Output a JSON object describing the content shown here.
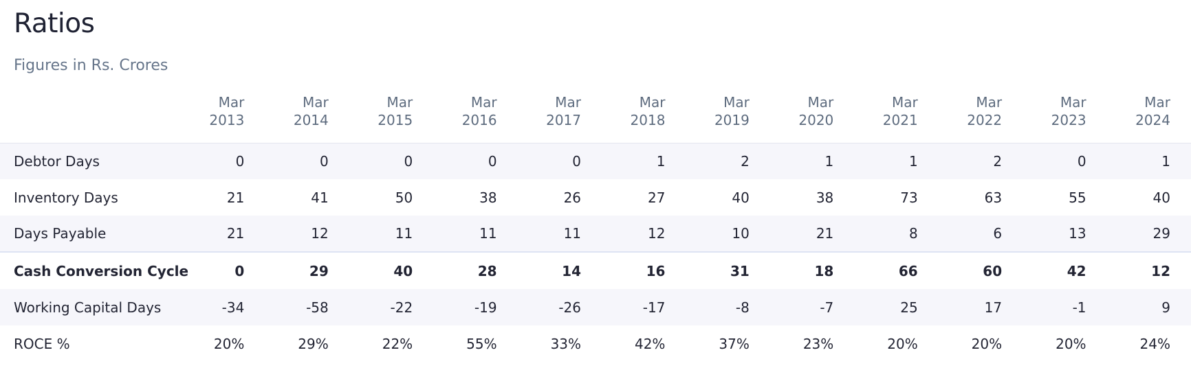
{
  "section": {
    "title": "Ratios",
    "subtitle": "Figures in Rs. Crores"
  },
  "table": {
    "columns": [
      {
        "month": "Mar",
        "year": "2013"
      },
      {
        "month": "Mar",
        "year": "2014"
      },
      {
        "month": "Mar",
        "year": "2015"
      },
      {
        "month": "Mar",
        "year": "2016"
      },
      {
        "month": "Mar",
        "year": "2017"
      },
      {
        "month": "Mar",
        "year": "2018"
      },
      {
        "month": "Mar",
        "year": "2019"
      },
      {
        "month": "Mar",
        "year": "2020"
      },
      {
        "month": "Mar",
        "year": "2021"
      },
      {
        "month": "Mar",
        "year": "2022"
      },
      {
        "month": "Mar",
        "year": "2023"
      },
      {
        "month": "Mar",
        "year": "2024"
      }
    ],
    "rows": [
      {
        "label": "Debtor Days",
        "values": [
          "0",
          "0",
          "0",
          "0",
          "0",
          "1",
          "2",
          "1",
          "1",
          "2",
          "0",
          "1"
        ]
      },
      {
        "label": "Inventory Days",
        "values": [
          "21",
          "41",
          "50",
          "38",
          "26",
          "27",
          "40",
          "38",
          "73",
          "63",
          "55",
          "40"
        ]
      },
      {
        "label": "Days Payable",
        "values": [
          "21",
          "12",
          "11",
          "11",
          "11",
          "12",
          "10",
          "21",
          "8",
          "6",
          "13",
          "29"
        ]
      },
      {
        "label": "Cash Conversion Cycle",
        "values": [
          "0",
          "29",
          "40",
          "28",
          "14",
          "16",
          "31",
          "18",
          "66",
          "60",
          "42",
          "12"
        ]
      },
      {
        "label": "Working Capital Days",
        "values": [
          "-34",
          "-58",
          "-22",
          "-19",
          "-26",
          "-17",
          "-8",
          "-7",
          "25",
          "17",
          "-1",
          "9"
        ]
      },
      {
        "label": "ROCE %",
        "values": [
          "20%",
          "29%",
          "22%",
          "55%",
          "33%",
          "42%",
          "37%",
          "23%",
          "20%",
          "20%",
          "20%",
          "24%"
        ]
      }
    ]
  },
  "colors": {
    "stripe": "#f6f6fb",
    "header_text": "#5d6b7e",
    "subtitle_text": "#66758a",
    "body_text": "#222433",
    "separator": "#dde3f3"
  }
}
